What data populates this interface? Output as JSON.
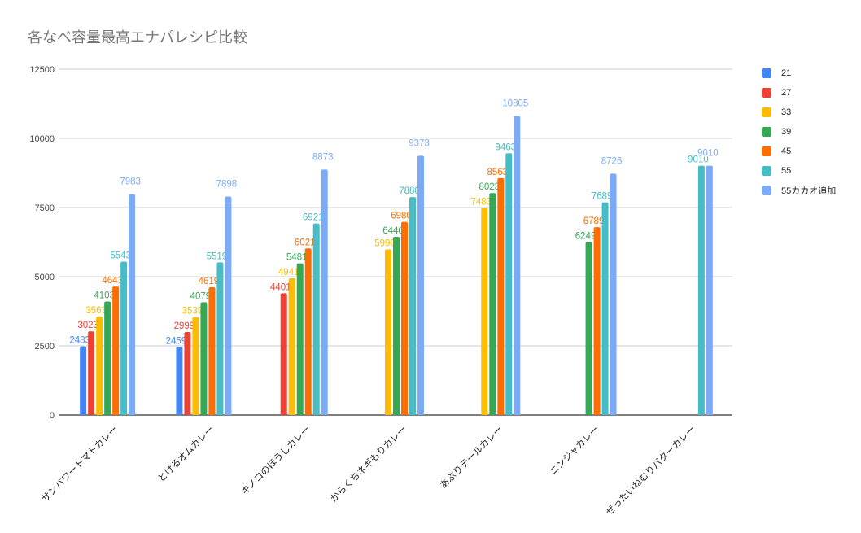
{
  "chart_data": {
    "type": "bar",
    "title": "各なべ容量最高エナパレシピ比較",
    "xlabel": "",
    "ylabel": "",
    "ylim": [
      0,
      12500
    ],
    "yticks": [
      "0",
      "2500",
      "5000",
      "7500",
      "10000",
      "12500"
    ],
    "grid": true,
    "legend_position": "right",
    "categories": [
      "サンパワートマトカレー",
      "とけるオムカレー",
      "キノコのほうしカレー",
      "からくちネギもりカレー",
      "あぶりテールカレー",
      "ニンジャカレー",
      "ぜったいねむりバターカレー"
    ],
    "series": [
      {
        "name": "21",
        "color": "#4285f4",
        "values": [
          2483,
          2459,
          null,
          null,
          null,
          null,
          null
        ]
      },
      {
        "name": "27",
        "color": "#ea4335",
        "values": [
          3023,
          2999,
          4401,
          null,
          null,
          null,
          null
        ]
      },
      {
        "name": "33",
        "color": "#fbbc04",
        "values": [
          3563,
          3539,
          4941,
          5990,
          7483,
          null,
          null
        ]
      },
      {
        "name": "39",
        "color": "#34a853",
        "values": [
          4103,
          4079,
          5481,
          6440,
          8023,
          6249,
          null
        ]
      },
      {
        "name": "45",
        "color": "#ff6d01",
        "values": [
          4643,
          4619,
          6021,
          6980,
          8563,
          6789,
          null
        ]
      },
      {
        "name": "55",
        "color": "#46bdc6",
        "values": [
          5543,
          5519,
          6921,
          7880,
          9463,
          7689,
          9010
        ]
      },
      {
        "name": "55カカオ追加",
        "color": "#7baaf7",
        "values": [
          7983,
          7898,
          8873,
          9373,
          10805,
          8726,
          9010
        ]
      }
    ]
  }
}
